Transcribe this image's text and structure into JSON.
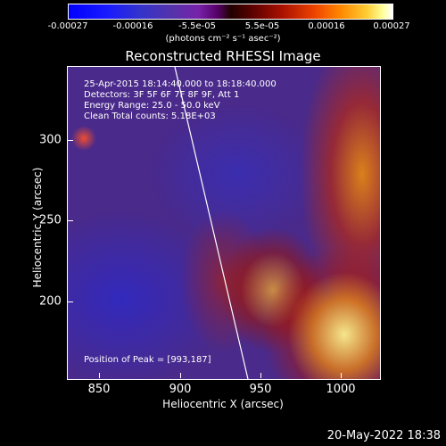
{
  "colorbar": {
    "ticks": [
      "-0.00027",
      "-0.00016",
      "-5.5e-05",
      "5.5e-05",
      "0.00016",
      "0.00027"
    ],
    "units": "(photons cm⁻² s⁻¹ asec⁻²)"
  },
  "title": "Reconstructed RHESSI Image",
  "info": {
    "time": "25-Apr-2015 18:14:40.000 to 18:18:40.000",
    "detectors": "Detectors: 3F 5F 6F 7F 8F 9F, Att 1",
    "energy": "Energy Range: 25.0 - 50.0 keV",
    "method": "Clean     Total counts: 5.18E+03",
    "peak": "Position of Peak = [993,187]"
  },
  "axes": {
    "xlabel": "Heliocentric X (arcsec)",
    "ylabel": "Heliocentric Y (arcsec)",
    "xticks": [
      "850",
      "900",
      "950",
      "1000"
    ],
    "yticks": [
      "300",
      "250",
      "200"
    ]
  },
  "timestamp": "20-May-2022 18:38",
  "colors": {
    "background": "#000000",
    "foreground": "#ffffff",
    "limb": "#ffffff"
  }
}
